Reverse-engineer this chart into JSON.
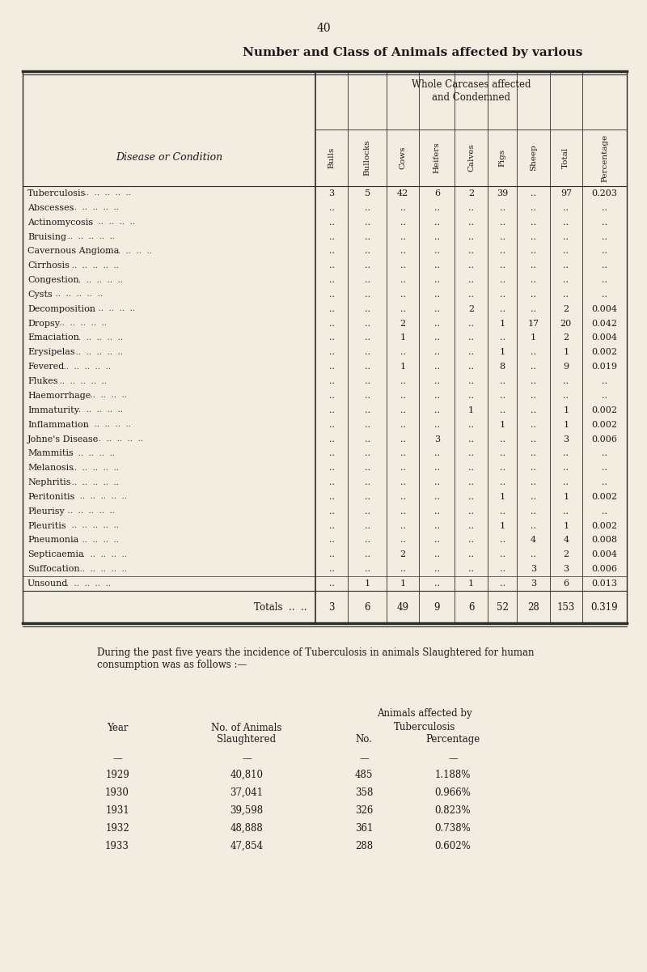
{
  "page_number": "40",
  "title": "Number and Class of Animals affected by various",
  "background_color": "#f2ede0",
  "text_color": "#1a1a1a",
  "col_headers": [
    "Bulls",
    "Bullocks",
    "Cows",
    "Heifers",
    "Calves",
    "Pigs",
    "Sheep",
    "Total",
    "Percentage"
  ],
  "disease_col_header": "Disease or Condition",
  "rows": [
    [
      "Tuberculosis",
      "3",
      "5",
      "42",
      "6",
      "2",
      "39",
      "..",
      "97",
      "0.203"
    ],
    [
      "Abscesses",
      "..",
      "..",
      "..",
      "..",
      "..",
      "..",
      "..",
      "..",
      ".."
    ],
    [
      "Actinomycosis",
      "..",
      "..",
      "..",
      "..",
      "..",
      "..",
      "..",
      "..",
      ".."
    ],
    [
      "Bruising",
      "..",
      "..",
      "..",
      "..",
      "..",
      "..",
      "..",
      "..",
      ".."
    ],
    [
      "Cavernous Angioma",
      "..",
      "..",
      "..",
      "..",
      "..",
      "..",
      "..",
      "..",
      ".."
    ],
    [
      "Cirrhosis",
      "..",
      "..",
      "..",
      "..",
      "..",
      "..",
      "..",
      "..",
      ".."
    ],
    [
      "Congestion",
      "..",
      "..",
      "..",
      "..",
      "..",
      "..",
      "..",
      "..",
      ".."
    ],
    [
      "Cysts",
      "..",
      "..",
      "..",
      "..",
      "..",
      "..",
      "..",
      "..",
      ".."
    ],
    [
      "Decomposition",
      "..",
      "..",
      "..",
      "..",
      "2",
      "..",
      "..",
      "2",
      "0.004"
    ],
    [
      "Dropsy",
      "..",
      "..",
      "2",
      "..",
      "..",
      "1",
      "17",
      "20",
      "0.042"
    ],
    [
      "Emaciation",
      "..",
      "..",
      "1",
      "..",
      "..",
      "..",
      "1",
      "2",
      "0.004"
    ],
    [
      "Erysipelas",
      "..",
      "..",
      "..",
      "..",
      "..",
      "1",
      "..",
      "1",
      "0.002"
    ],
    [
      "Fevered",
      "..",
      "..",
      "1",
      "..",
      "..",
      "8",
      "..",
      "9",
      "0.019"
    ],
    [
      "Flukes",
      "..",
      "..",
      "..",
      "..",
      "..",
      "..",
      "..",
      "..",
      ".."
    ],
    [
      "Haemorrhage",
      "..",
      "..",
      "..",
      "..",
      "..",
      "..",
      "..",
      "..",
      ".."
    ],
    [
      "Immaturity",
      "..",
      "..",
      "..",
      "..",
      "1",
      "..",
      "..",
      "1",
      "0.002"
    ],
    [
      "Inflammation",
      "..",
      "..",
      "..",
      "..",
      "..",
      "1",
      "..",
      "1",
      "0.002"
    ],
    [
      "Johne's Disease",
      "..",
      "..",
      "..",
      "3",
      "..",
      "..",
      "..",
      "3",
      "0.006"
    ],
    [
      "Mammitis",
      "..",
      "..",
      "..",
      "..",
      "..",
      "..",
      "..",
      "..",
      ".."
    ],
    [
      "Melanosis",
      "..",
      "..",
      "..",
      "..",
      "..",
      "..",
      "..",
      "..",
      ".."
    ],
    [
      "Nephritis",
      "..",
      "..",
      "..",
      "..",
      "..",
      "..",
      "..",
      "..",
      ".."
    ],
    [
      "Peritonitis",
      "..",
      "..",
      "..",
      "..",
      "..",
      "1",
      "..",
      "1",
      "0.002"
    ],
    [
      "Pleurisy",
      "..",
      "..",
      "..",
      "..",
      "..",
      "..",
      "..",
      "..",
      ".."
    ],
    [
      "Pleuritis",
      "..",
      "..",
      "..",
      "..",
      "..",
      "1",
      "..",
      "1",
      "0.002"
    ],
    [
      "Pneumonia",
      "..",
      "..",
      "..",
      "..",
      "..",
      "..",
      "4",
      "4",
      "0.008"
    ],
    [
      "Septicaemia",
      "..",
      "..",
      "2",
      "..",
      "..",
      "..",
      "..",
      "2",
      "0.004"
    ],
    [
      "Suffocation",
      "..",
      "..",
      "..",
      "..",
      "..",
      "..",
      "3",
      "3",
      "0.006"
    ],
    [
      "Unsound",
      "..",
      "1",
      "1",
      "..",
      "1",
      "..",
      "3",
      "6",
      "0.013"
    ]
  ],
  "totals_row": [
    "Totals",
    "3",
    "6",
    "49",
    "9",
    "6",
    "52",
    "28",
    "153",
    "0.319"
  ],
  "paragraph": "During the past five years the incidence of Tuberculosis in animals Slaughtered for human\nconsumption was as follows :—",
  "tb_col_headers_left": [
    "Year",
    "No. of Animals\nSlaughtered"
  ],
  "tb_col_headers_right": [
    "No.",
    "Percentage"
  ],
  "tb_group_header1": "Animals affected by",
  "tb_group_header2": "Tuberculosis",
  "tb_rows": [
    [
      "1929",
      "40,810",
      "485",
      "1.188%"
    ],
    [
      "1930",
      "37,041",
      "358",
      "0.966%"
    ],
    [
      "1931",
      "39,598",
      "326",
      "0.823%"
    ],
    [
      "1932",
      "48,888",
      "361",
      "0.738%"
    ],
    [
      "1933",
      "47,854",
      "288",
      "0.602%"
    ]
  ]
}
